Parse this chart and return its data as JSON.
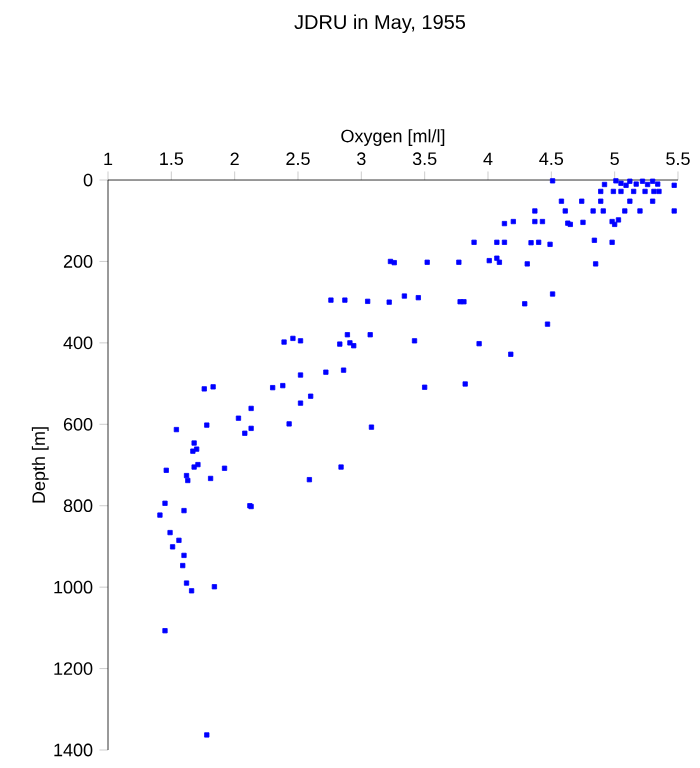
{
  "chart_data": {
    "type": "scatter",
    "title": "JDRU in May, 1955",
    "xlabel": "Oxygen [ml/l]",
    "ylabel": "Depth [m]",
    "xlim": [
      1,
      5.5
    ],
    "xticks": [
      1,
      1.5,
      2,
      2.5,
      3,
      3.5,
      4,
      4.5,
      5,
      5.5
    ],
    "ylim": [
      1400,
      0
    ],
    "yticks": [
      0,
      200,
      400,
      600,
      800,
      1000,
      1200,
      1400
    ],
    "marker": "square",
    "grid": false,
    "series": [
      {
        "color": "#0000ff",
        "x": [
          3.23,
          3.26,
          2.76,
          2.87,
          3.05,
          3.22,
          2.39,
          2.46,
          2.52,
          2.83,
          2.89,
          2.91,
          2.94,
          3.07,
          2.52,
          2.72,
          2.86,
          2.3,
          2.38,
          1.76,
          1.83,
          2.6,
          2.52,
          2.13,
          2.03,
          2.43,
          2.13,
          2.08,
          1.54,
          1.78,
          3.08,
          1.68,
          1.67,
          1.7,
          1.71,
          1.68,
          1.46,
          1.92,
          1.81,
          1.62,
          1.63,
          2.84,
          2.59,
          2.12,
          2.13,
          1.45,
          1.6,
          1.41,
          1.49,
          1.56,
          1.51,
          1.6,
          1.59,
          1.62,
          1.66,
          1.84,
          1.45,
          1.78,
          4.51,
          5.01,
          5.05,
          5.12,
          5.17,
          5.22,
          5.3,
          5.34,
          5.47,
          4.92,
          4.89,
          4.99,
          5.05,
          5.15,
          5.24,
          5.31,
          5.35,
          5.09,
          5.26,
          4.58,
          4.74,
          4.89,
          5.12,
          5.3,
          4.37,
          4.61,
          4.83,
          4.91,
          5.08,
          5.2,
          5.47,
          4.13,
          4.2,
          4.37,
          4.43,
          4.63,
          4.65,
          4.75,
          4.98,
          5.0,
          5.03,
          3.89,
          4.07,
          4.13,
          4.34,
          4.4,
          4.49,
          4.84,
          4.98,
          3.52,
          3.77,
          4.01,
          4.07,
          4.09,
          4.31,
          4.85,
          3.34,
          3.45,
          3.78,
          3.81,
          4.29,
          4.51,
          3.42,
          3.93,
          4.47,
          4.18,
          3.5,
          3.82
        ],
        "values": [
          200,
          203,
          295,
          295,
          298,
          300,
          398,
          389,
          395,
          403,
          380,
          400,
          407,
          380,
          479,
          472,
          467,
          510,
          505,
          513,
          508,
          531,
          548,
          561,
          585,
          599,
          610,
          622,
          613,
          602,
          607,
          646,
          666,
          661,
          699,
          705,
          713,
          708,
          733,
          726,
          738,
          705,
          736,
          800,
          802,
          794,
          812,
          823,
          866,
          885,
          901,
          922,
          947,
          990,
          1009,
          999,
          1107,
          1363,
          2,
          2,
          8,
          3,
          10,
          3,
          3,
          10,
          13,
          11,
          28,
          28,
          28,
          28,
          28,
          28,
          28,
          13,
          11,
          52,
          52,
          52,
          52,
          52,
          76,
          76,
          76,
          76,
          76,
          76,
          76,
          107,
          102,
          102,
          102,
          106,
          109,
          104,
          102,
          109,
          98,
          153,
          153,
          153,
          154,
          153,
          158,
          148,
          153,
          202,
          202,
          198,
          192,
          202,
          206,
          206,
          285,
          289,
          299,
          299,
          304,
          280,
          395,
          402,
          354,
          428,
          509,
          501
        ]
      }
    ]
  }
}
